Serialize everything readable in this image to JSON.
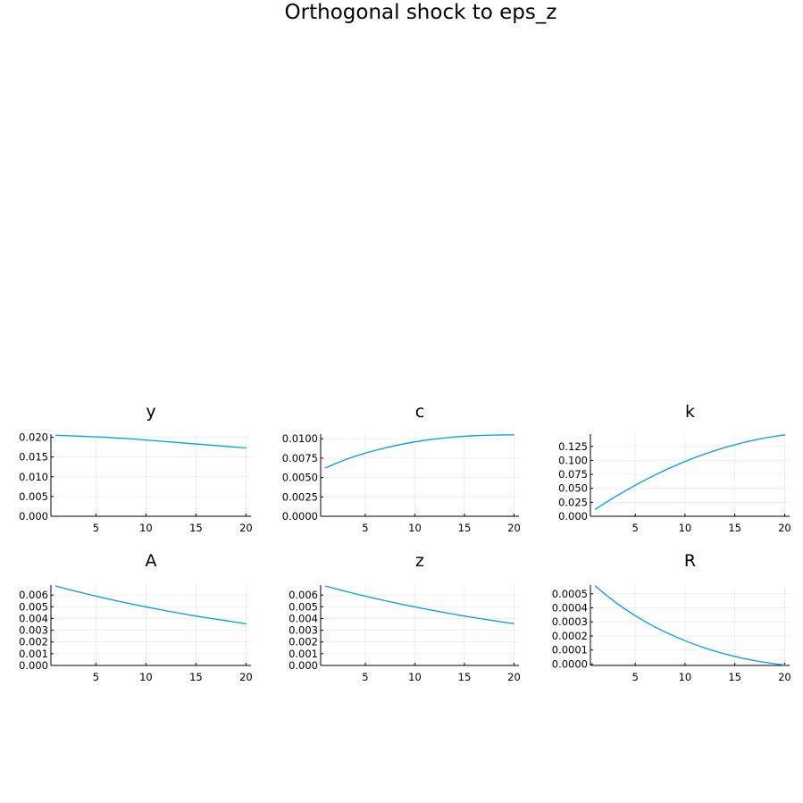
{
  "figure": {
    "title": "Orthogonal shock to eps_z"
  },
  "colors": {
    "series": "#009AF9",
    "axis": "#000000",
    "background": "#FFFFFF"
  },
  "chart_data": [
    {
      "type": "line",
      "title": "y",
      "xlabel": "",
      "ylabel": "",
      "grid": true,
      "legend": "none",
      "x": [
        1,
        2,
        3,
        4,
        5,
        6,
        7,
        8,
        9,
        10,
        11,
        12,
        13,
        14,
        15,
        16,
        17,
        18,
        19,
        20
      ],
      "series": [
        {
          "values": [
            0.0205,
            0.0204,
            0.0203,
            0.0202,
            0.0201,
            0.02,
            0.0198,
            0.0197,
            0.0195,
            0.0193,
            0.0191,
            0.0189,
            0.0187,
            0.0185,
            0.0183,
            0.0181,
            0.0179,
            0.0177,
            0.0175,
            0.0173
          ]
        }
      ],
      "xlim": [
        0.5,
        20.5
      ],
      "ylim": [
        0,
        0.0208
      ],
      "xticks": [
        5,
        10,
        15,
        20
      ],
      "yticks": [
        0,
        0.005,
        0.01,
        0.015,
        0.02
      ],
      "ytick_labels": [
        "0.000",
        "0.005",
        "0.010",
        "0.015",
        "0.020"
      ]
    },
    {
      "type": "line",
      "title": "c",
      "xlabel": "",
      "ylabel": "",
      "grid": true,
      "legend": "none",
      "x": [
        1,
        2,
        3,
        4,
        5,
        6,
        7,
        8,
        9,
        10,
        11,
        12,
        13,
        14,
        15,
        16,
        17,
        18,
        19,
        20
      ],
      "series": [
        {
          "values": [
            0.00625,
            0.0068,
            0.0073,
            0.00775,
            0.00815,
            0.0085,
            0.00882,
            0.00911,
            0.00937,
            0.0096,
            0.0098,
            0.00997,
            0.01011,
            0.01023,
            0.01032,
            0.01039,
            0.01044,
            0.01047,
            0.01049,
            0.0105
          ]
        }
      ],
      "xlim": [
        0.5,
        20.5
      ],
      "ylim": [
        0,
        0.0106
      ],
      "xticks": [
        5,
        10,
        15,
        20
      ],
      "yticks": [
        0,
        0.0025,
        0.005,
        0.0075,
        0.01
      ],
      "ytick_labels": [
        "0.0000",
        "0.0025",
        "0.0050",
        "0.0075",
        "0.0100"
      ]
    },
    {
      "type": "line",
      "title": "k",
      "xlabel": "",
      "ylabel": "",
      "grid": true,
      "legend": "none",
      "x": [
        1,
        2,
        3,
        4,
        5,
        6,
        7,
        8,
        9,
        10,
        11,
        12,
        13,
        14,
        15,
        16,
        17,
        18,
        19,
        20
      ],
      "series": [
        {
          "values": [
            0.0125,
            0.024,
            0.035,
            0.0455,
            0.0555,
            0.065,
            0.074,
            0.0825,
            0.0905,
            0.098,
            0.105,
            0.1115,
            0.1175,
            0.123,
            0.128,
            0.1325,
            0.1365,
            0.14,
            0.143,
            0.1455
          ]
        }
      ],
      "xlim": [
        0.5,
        20.5
      ],
      "ylim": [
        0,
        0.147
      ],
      "xticks": [
        5,
        10,
        15,
        20
      ],
      "yticks": [
        0,
        0.025,
        0.05,
        0.075,
        0.1,
        0.125
      ],
      "ytick_labels": [
        "0.000",
        "0.025",
        "0.050",
        "0.075",
        "0.100",
        "0.125"
      ]
    },
    {
      "type": "line",
      "title": "A",
      "xlabel": "",
      "ylabel": "",
      "grid": true,
      "legend": "none",
      "x": [
        1,
        2,
        3,
        4,
        5,
        6,
        7,
        8,
        9,
        10,
        11,
        12,
        13,
        14,
        15,
        16,
        17,
        18,
        19,
        20
      ],
      "series": [
        {
          "values": [
            0.00676,
            0.00654,
            0.00632,
            0.00611,
            0.00591,
            0.00571,
            0.00552,
            0.00534,
            0.00516,
            0.00499,
            0.00482,
            0.00466,
            0.00451,
            0.00436,
            0.00421,
            0.00407,
            0.00394,
            0.00381,
            0.00368,
            0.00356
          ]
        }
      ],
      "xlim": [
        0.5,
        20.5
      ],
      "ylim": [
        0,
        0.00685
      ],
      "xticks": [
        5,
        10,
        15,
        20
      ],
      "yticks": [
        0,
        0.001,
        0.002,
        0.003,
        0.004,
        0.005,
        0.006
      ],
      "ytick_labels": [
        "0.000",
        "0.001",
        "0.002",
        "0.003",
        "0.004",
        "0.005",
        "0.006"
      ]
    },
    {
      "type": "line",
      "title": "z",
      "xlabel": "",
      "ylabel": "",
      "grid": true,
      "legend": "none",
      "x": [
        1,
        2,
        3,
        4,
        5,
        6,
        7,
        8,
        9,
        10,
        11,
        12,
        13,
        14,
        15,
        16,
        17,
        18,
        19,
        20
      ],
      "series": [
        {
          "values": [
            0.00676,
            0.00654,
            0.00632,
            0.00611,
            0.00591,
            0.00571,
            0.00552,
            0.00534,
            0.00516,
            0.00499,
            0.00482,
            0.00466,
            0.00451,
            0.00436,
            0.00421,
            0.00407,
            0.00394,
            0.00381,
            0.00368,
            0.00356
          ]
        }
      ],
      "xlim": [
        0.5,
        20.5
      ],
      "ylim": [
        0,
        0.00685
      ],
      "xticks": [
        5,
        10,
        15,
        20
      ],
      "yticks": [
        0,
        0.001,
        0.002,
        0.003,
        0.004,
        0.005,
        0.006
      ],
      "ytick_labels": [
        "0.000",
        "0.001",
        "0.002",
        "0.003",
        "0.004",
        "0.005",
        "0.006"
      ]
    },
    {
      "type": "line",
      "title": "R",
      "xlabel": "",
      "ylabel": "",
      "grid": true,
      "legend": "none",
      "x": [
        1,
        2,
        3,
        4,
        5,
        6,
        7,
        8,
        9,
        10,
        11,
        12,
        13,
        14,
        15,
        16,
        17,
        18,
        19,
        20
      ],
      "series": [
        {
          "values": [
            0.000555,
            0.000495,
            0.00044,
            0.00039,
            0.000344,
            0.000302,
            0.000263,
            0.000228,
            0.000196,
            0.000166,
            0.000139,
            0.000114,
            9.2e-05,
            7.2e-05,
            5.4e-05,
            3.8e-05,
            2.4e-05,
            1.2e-05,
            2e-06,
            -8e-06
          ]
        }
      ],
      "xlim": [
        0.5,
        20.5
      ],
      "ylim": [
        -1e-05,
        0.000562
      ],
      "xticks": [
        5,
        10,
        15,
        20
      ],
      "yticks": [
        0,
        0.0001,
        0.0002,
        0.0003,
        0.0004,
        0.0005
      ],
      "ytick_labels": [
        "0.0000",
        "0.0001",
        "0.0002",
        "0.0003",
        "0.0004",
        "0.0005"
      ]
    }
  ]
}
